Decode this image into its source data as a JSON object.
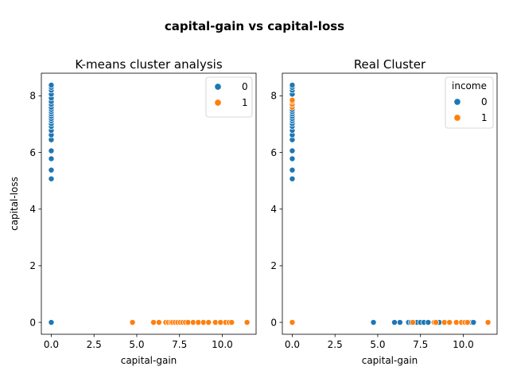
{
  "suptitle": "capital-gain vs capital-loss",
  "chart_data": [
    {
      "type": "scatter",
      "title": "K-means cluster analysis",
      "xlabel": "capital-gain",
      "ylabel": "capital-loss",
      "xlim": [
        -0.58,
        11.98
      ],
      "ylim": [
        -0.42,
        8.8
      ],
      "xticks": [
        0.0,
        2.5,
        5.0,
        7.5,
        10.0
      ],
      "yticks": [
        0,
        2,
        4,
        6,
        8
      ],
      "grid": false,
      "legend": {
        "title": "",
        "placement": "top-right",
        "entries": [
          "0",
          "1"
        ]
      },
      "series": [
        {
          "name": "0",
          "color": "#1f77b4",
          "points": [
            [
              0,
              0
            ],
            [
              0,
              5.07
            ],
            [
              0,
              5.38
            ],
            [
              0,
              5.78
            ],
            [
              0,
              6.06
            ],
            [
              0,
              6.45
            ],
            [
              0,
              6.62
            ],
            [
              0,
              6.78
            ],
            [
              0,
              6.92
            ],
            [
              0,
              7.02
            ],
            [
              0,
              7.12
            ],
            [
              0,
              7.2
            ],
            [
              0,
              7.28
            ],
            [
              0,
              7.36
            ],
            [
              0,
              7.44
            ],
            [
              0,
              7.52
            ],
            [
              0,
              7.6
            ],
            [
              0,
              7.7
            ],
            [
              0,
              7.8
            ],
            [
              0,
              7.92
            ],
            [
              0,
              8.06
            ],
            [
              0,
              8.2
            ],
            [
              0,
              8.3
            ],
            [
              0,
              8.38
            ]
          ]
        },
        {
          "name": "1",
          "color": "#ff7f0e",
          "points": [
            [
              4.75,
              0
            ],
            [
              5.98,
              0
            ],
            [
              6.3,
              0
            ],
            [
              6.7,
              0
            ],
            [
              6.85,
              0
            ],
            [
              7.0,
              0
            ],
            [
              7.1,
              0
            ],
            [
              7.25,
              0
            ],
            [
              7.4,
              0
            ],
            [
              7.55,
              0
            ],
            [
              7.7,
              0
            ],
            [
              7.85,
              0
            ],
            [
              8.0,
              0
            ],
            [
              8.3,
              0
            ],
            [
              8.6,
              0
            ],
            [
              8.9,
              0
            ],
            [
              9.2,
              0
            ],
            [
              9.6,
              0
            ],
            [
              9.9,
              0
            ],
            [
              10.2,
              0
            ],
            [
              10.4,
              0
            ],
            [
              10.55,
              0
            ],
            [
              11.45,
              0
            ]
          ]
        }
      ]
    },
    {
      "type": "scatter",
      "title": "Real Cluster",
      "xlabel": "capital-gain",
      "ylabel": "",
      "xlim": [
        -0.58,
        11.98
      ],
      "ylim": [
        -0.42,
        8.8
      ],
      "xticks": [
        0.0,
        2.5,
        5.0,
        7.5,
        10.0
      ],
      "yticks": [
        0,
        2,
        4,
        6,
        8
      ],
      "grid": false,
      "legend": {
        "title": "income",
        "placement": "top-right",
        "entries": [
          "0",
          "1"
        ]
      },
      "series": [
        {
          "name": "0",
          "color": "#1f77b4",
          "points": [
            [
              0,
              5.07
            ],
            [
              0,
              5.38
            ],
            [
              0,
              5.78
            ],
            [
              0,
              6.06
            ],
            [
              0,
              6.45
            ],
            [
              0,
              6.62
            ],
            [
              0,
              6.78
            ],
            [
              0,
              6.92
            ],
            [
              0,
              7.02
            ],
            [
              0,
              7.12
            ],
            [
              0,
              7.2
            ],
            [
              0,
              7.28
            ],
            [
              0,
              7.36
            ],
            [
              0,
              7.44
            ],
            [
              0,
              7.52
            ],
            [
              0,
              8.06
            ],
            [
              0,
              8.2
            ],
            [
              0,
              8.3
            ],
            [
              0,
              8.38
            ],
            [
              4.75,
              0
            ],
            [
              5.98,
              0
            ],
            [
              6.3,
              0
            ],
            [
              6.8,
              0
            ],
            [
              6.95,
              0
            ],
            [
              7.1,
              0
            ],
            [
              7.3,
              0
            ],
            [
              7.5,
              0
            ],
            [
              7.7,
              0
            ],
            [
              7.95,
              0
            ],
            [
              8.6,
              0
            ],
            [
              10.5,
              0
            ],
            [
              10.6,
              0
            ]
          ]
        },
        {
          "name": "1",
          "color": "#ff7f0e",
          "points": [
            [
              0,
              0
            ],
            [
              0,
              7.6
            ],
            [
              0,
              7.7
            ],
            [
              0,
              7.8
            ],
            [
              0,
              7.85
            ],
            [
              7.05,
              0
            ],
            [
              8.3,
              0
            ],
            [
              8.4,
              0
            ],
            [
              8.9,
              0
            ],
            [
              9.2,
              0
            ],
            [
              9.6,
              0
            ],
            [
              9.9,
              0
            ],
            [
              10.1,
              0
            ],
            [
              10.25,
              0
            ],
            [
              11.45,
              0
            ]
          ]
        }
      ]
    }
  ]
}
